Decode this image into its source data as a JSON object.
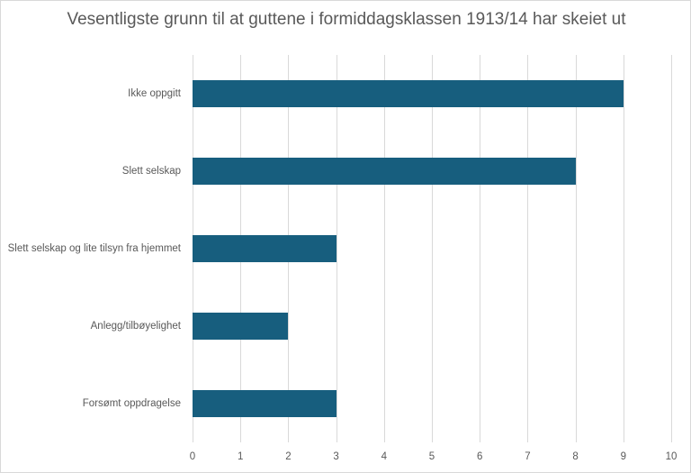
{
  "chart_data": {
    "type": "bar",
    "orientation": "horizontal",
    "title": "Vesentligste grunn til at guttene i formiddagsklassen 1913/14 har skeiet ut",
    "categories": [
      "Ikke oppgitt",
      "Slett selskap",
      "Slett selskap og lite tilsyn fra hjemmet",
      "Anlegg/tilbøyelighet",
      "Forsømt oppdragelse"
    ],
    "values": [
      9,
      8,
      3,
      2,
      3
    ],
    "xlabel": "",
    "ylabel": "",
    "xlim": [
      0,
      10
    ],
    "x_ticks": [
      "0",
      "1",
      "2",
      "3",
      "4",
      "5",
      "6",
      "7",
      "8",
      "9",
      "10"
    ],
    "grid": "vertical",
    "legend": "none",
    "bar_color": "#175e7e"
  }
}
